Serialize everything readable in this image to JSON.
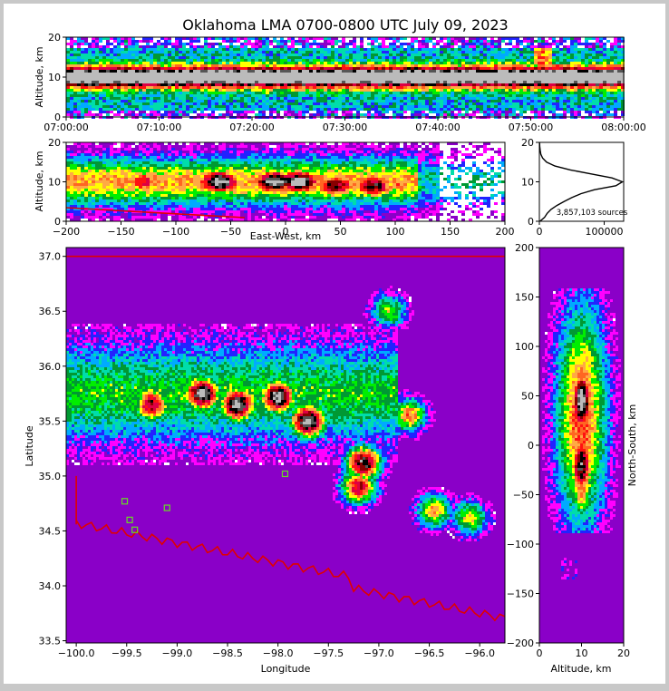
{
  "title": "Oklahoma LMA 0700-0800 UTC July 09, 2023",
  "colors": {
    "frame_bg": "#c8c8c8",
    "plot_bg": "#ffffff",
    "state_line": "#e00000",
    "county_line": "#bbbbbb",
    "marker": "#66dd22",
    "colormap": [
      "#8a00c8",
      "#ff00ff",
      "#2222ff",
      "#00aaff",
      "#00ddaa",
      "#009933",
      "#00ee00",
      "#ffff00",
      "#ffaa44",
      "#ff6622",
      "#ff1111",
      "#dd0044",
      "#880000",
      "#000000",
      "#555555",
      "#bbbbbb"
    ]
  },
  "panels": {
    "time_height": {
      "ylabel": "Altitude, km",
      "yticks": [
        "0",
        "10",
        "20"
      ],
      "xticks": [
        "07:00:00",
        "07:10:00",
        "07:20:00",
        "07:30:00",
        "07:40:00",
        "07:50:00",
        "08:00:00"
      ]
    },
    "ew_height": {
      "ylabel": "Altitude, km",
      "xlabel": "East-West, km",
      "yticks": [
        "0",
        "10",
        "20"
      ],
      "xticks": [
        "−200",
        "−150",
        "−100",
        "−50",
        "0",
        "50",
        "100",
        "150",
        "200"
      ]
    },
    "histogram": {
      "yticks": [
        "0",
        "10",
        "20"
      ],
      "xticks": [
        "0",
        "100000"
      ],
      "sources_label": "3,857,103 sources"
    },
    "plan": {
      "ylabel": "Latitude",
      "xlabel": "Longitude",
      "yticks": [
        "37.0",
        "36.5",
        "36.0",
        "35.5",
        "35.0",
        "34.5",
        "34.0",
        "33.5"
      ],
      "xticks": [
        "−100.0",
        "−99.5",
        "−99.0",
        "−98.5",
        "−98.0",
        "−97.5",
        "−97.0",
        "−96.5",
        "−96.0"
      ]
    },
    "ns_height": {
      "ylabel": "North-South, km",
      "xlabel": "Altitude, km",
      "yticks": [
        "200",
        "150",
        "100",
        "50",
        "0",
        "−50",
        "−100",
        "−150",
        "−200"
      ],
      "xticks": [
        "0",
        "10",
        "20"
      ]
    }
  },
  "chart_data": [
    {
      "type": "heatmap",
      "name": "time-height",
      "xlabel": "",
      "ylabel": "Altitude, km",
      "xlim": [
        "07:00:00",
        "08:00:00"
      ],
      "ylim": [
        0,
        20
      ],
      "peak_altitude_km": 10,
      "main_band_km": [
        7,
        13
      ],
      "isolated_burst": {
        "time": "07:51:00",
        "altitude_km": [
          13,
          17
        ]
      }
    },
    {
      "type": "heatmap",
      "name": "east-west-altitude",
      "xlabel": "East-West, km",
      "ylabel": "Altitude, km",
      "xlim": [
        -200,
        200
      ],
      "ylim": [
        0,
        20
      ],
      "cores": [
        {
          "x": -130,
          "alt": 10,
          "intensity": 0.7
        },
        {
          "x": -60,
          "alt": 10,
          "intensity": 1.0
        },
        {
          "x": -10,
          "alt": 10,
          "intensity": 1.0
        },
        {
          "x": 12,
          "alt": 10,
          "intensity": 1.0
        },
        {
          "x": 45,
          "alt": 9,
          "intensity": 0.85
        },
        {
          "x": 80,
          "alt": 9,
          "intensity": 0.85
        },
        {
          "x": 105,
          "alt": 9,
          "intensity": 0.6
        }
      ]
    },
    {
      "type": "line",
      "name": "altitude-histogram",
      "xlabel": "",
      "ylabel": "",
      "xlim": [
        0,
        130000
      ],
      "ylim": [
        0,
        20
      ],
      "total_sources": 3857103,
      "altitude_km": [
        0,
        1,
        2,
        3,
        4,
        5,
        6,
        7,
        8,
        9,
        10,
        11,
        12,
        13,
        14,
        15,
        16,
        17,
        18,
        19,
        20
      ],
      "sources": [
        1000,
        8000,
        12000,
        18000,
        27000,
        38000,
        50000,
        64000,
        85000,
        118000,
        128000,
        112000,
        80000,
        48000,
        24000,
        11000,
        5000,
        2200,
        1200,
        600,
        300
      ]
    },
    {
      "type": "heatmap",
      "name": "plan-view",
      "xlabel": "Longitude",
      "ylabel": "Latitude",
      "xlim": [
        -100.1,
        -95.75
      ],
      "ylim": [
        33.48,
        37.08
      ],
      "cores": [
        {
          "lon": -99.25,
          "lat": 35.65,
          "intensity": 0.8
        },
        {
          "lon": -98.75,
          "lat": 35.75,
          "intensity": 1.0
        },
        {
          "lon": -98.4,
          "lat": 35.65,
          "intensity": 1.0
        },
        {
          "lon": -98.0,
          "lat": 35.72,
          "intensity": 1.0
        },
        {
          "lon": -97.7,
          "lat": 35.5,
          "intensity": 1.0
        },
        {
          "lon": -97.15,
          "lat": 35.12,
          "intensity": 0.9
        },
        {
          "lon": -97.2,
          "lat": 34.9,
          "intensity": 0.75
        },
        {
          "lon": -96.7,
          "lat": 35.55,
          "intensity": 0.6
        },
        {
          "lon": -96.45,
          "lat": 34.68,
          "intensity": 0.55
        },
        {
          "lon": -96.1,
          "lat": 34.62,
          "intensity": 0.5
        },
        {
          "lon": -96.9,
          "lat": 36.5,
          "intensity": 0.45
        }
      ],
      "stations": [
        {
          "lon": -99.52,
          "lat": 34.77
        },
        {
          "lon": -99.47,
          "lat": 34.6
        },
        {
          "lon": -99.42,
          "lat": 34.51
        },
        {
          "lon": -99.1,
          "lat": 34.71
        },
        {
          "lon": -97.93,
          "lat": 35.02
        }
      ]
    },
    {
      "type": "heatmap",
      "name": "north-south-altitude",
      "xlabel": "Altitude, km",
      "ylabel": "North-South, km",
      "xlim": [
        0,
        20
      ],
      "ylim": [
        -200,
        200
      ],
      "cores": [
        {
          "alt": 10,
          "y": 45,
          "intensity": 1.0
        },
        {
          "alt": 10,
          "y": -20,
          "intensity": 0.9
        },
        {
          "alt": 10,
          "y": -42,
          "intensity": 0.6
        }
      ]
    }
  ]
}
